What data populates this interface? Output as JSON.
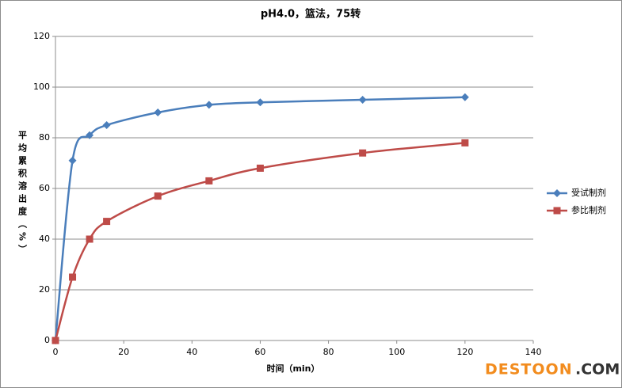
{
  "chart_data": {
    "type": "line",
    "title": "pH4.0，篮法，75转",
    "x_label": "时间（min）",
    "y_label": "平均累积溶出度（%）",
    "x": [
      0,
      5,
      10,
      15,
      30,
      45,
      60,
      90,
      120
    ],
    "series": [
      {
        "name": "受试制剂",
        "color": "#4a7ebb",
        "marker": "diamond",
        "values": [
          0,
          71,
          81,
          85,
          90,
          93,
          94,
          95,
          96
        ]
      },
      {
        "name": "参比制剂",
        "color": "#be4b48",
        "marker": "square",
        "values": [
          0,
          25,
          40,
          47,
          57,
          63,
          68,
          74,
          78
        ]
      }
    ],
    "xlim": [
      0,
      140
    ],
    "xticks": [
      0,
      20,
      40,
      60,
      80,
      100,
      120,
      140
    ],
    "ylim": [
      0,
      120
    ],
    "yticks": [
      0,
      20,
      40,
      60,
      80,
      100,
      120
    ],
    "grid": true,
    "smooth": true,
    "legend": "right"
  },
  "watermark": {
    "brand": "DESTOON",
    "domain": ".COM"
  }
}
